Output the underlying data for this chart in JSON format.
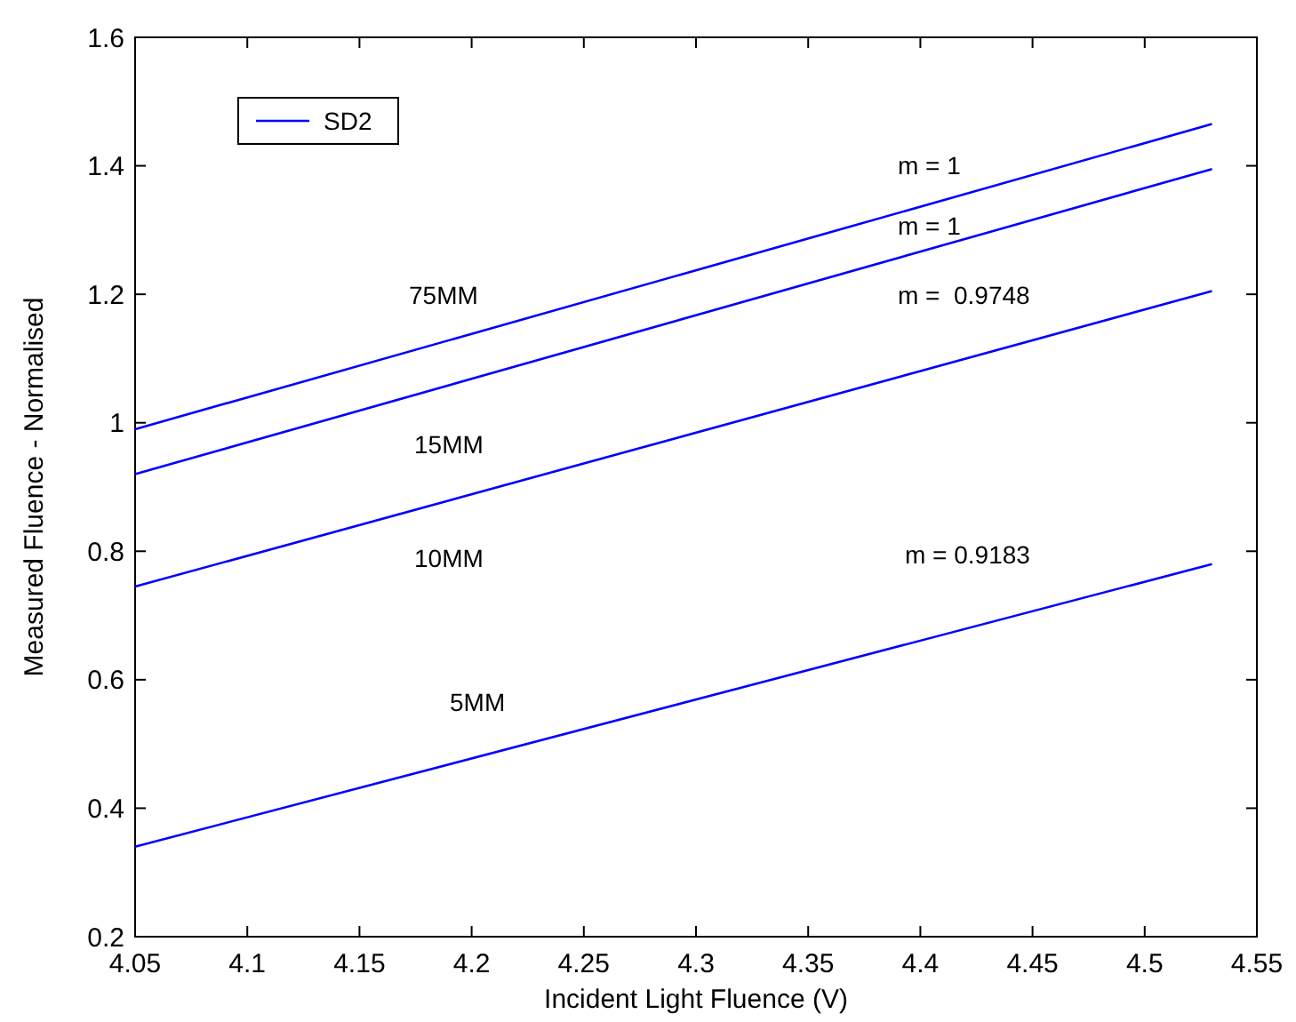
{
  "chart_data": {
    "type": "line",
    "xlabel": "Incident Light Fluence (V)",
    "ylabel": "Measured Fluence - Normalised",
    "xlim": [
      4.05,
      4.55
    ],
    "xticks": [
      4.05,
      4.1,
      4.15,
      4.2,
      4.25,
      4.3,
      4.35,
      4.4,
      4.45,
      4.5,
      4.55
    ],
    "ylim": [
      0.2,
      1.6
    ],
    "yticks": [
      0.2,
      0.4,
      0.6,
      0.8,
      1,
      1.2,
      1.4,
      1.6
    ],
    "x": [
      4.05,
      4.53
    ],
    "series": [
      {
        "name": "SD2",
        "color": "#0000ff",
        "values": [
          0.99,
          1.465
        ]
      },
      {
        "color": "#0000ff",
        "values": [
          0.92,
          1.395
        ]
      },
      {
        "color": "#0000ff",
        "values": [
          0.745,
          1.205
        ]
      },
      {
        "color": "#0000ff",
        "values": [
          0.34,
          0.78
        ]
      }
    ],
    "annotations": [
      "m = 1",
      "m = 1",
      "m =  0.9748",
      "m = 0.9183",
      "75MM",
      "15MM",
      "10MM",
      "5MM"
    ],
    "legend": "top left",
    "grid": false,
    "marker": "none",
    "line_style": "solid"
  }
}
